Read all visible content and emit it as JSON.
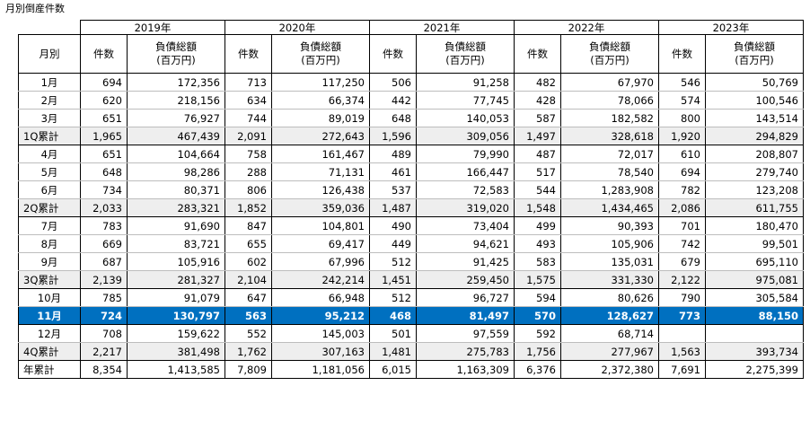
{
  "page_title": "月別倒産件数",
  "header": {
    "month_label": "月別",
    "count_label": "件数",
    "debt_label_line1": "負債総額",
    "debt_label_line2": "(百万円)",
    "years": [
      "2019年",
      "2020年",
      "2021年",
      "2022年",
      "2023年"
    ]
  },
  "rows": [
    {
      "label": "1月",
      "kind": "month",
      "cells": [
        "694",
        "172,356",
        "713",
        "117,250",
        "506",
        "91,258",
        "482",
        "67,970",
        "546",
        "50,769"
      ]
    },
    {
      "label": "2月",
      "kind": "month",
      "cells": [
        "620",
        "218,156",
        "634",
        "66,374",
        "442",
        "77,745",
        "428",
        "78,066",
        "574",
        "100,546"
      ]
    },
    {
      "label": "3月",
      "kind": "month",
      "cells": [
        "651",
        "76,927",
        "744",
        "89,019",
        "648",
        "140,053",
        "587",
        "182,582",
        "800",
        "143,514"
      ]
    },
    {
      "label": "1Q累計",
      "kind": "subtotal",
      "cells": [
        "1,965",
        "467,439",
        "2,091",
        "272,643",
        "1,596",
        "309,056",
        "1,497",
        "328,618",
        "1,920",
        "294,829"
      ]
    },
    {
      "label": "4月",
      "kind": "month",
      "cells": [
        "651",
        "104,664",
        "758",
        "161,467",
        "489",
        "79,990",
        "487",
        "72,017",
        "610",
        "208,807"
      ]
    },
    {
      "label": "5月",
      "kind": "month",
      "cells": [
        "648",
        "98,286",
        "288",
        "71,131",
        "461",
        "166,447",
        "517",
        "78,540",
        "694",
        "279,740"
      ]
    },
    {
      "label": "6月",
      "kind": "month",
      "cells": [
        "734",
        "80,371",
        "806",
        "126,438",
        "537",
        "72,583",
        "544",
        "1,283,908",
        "782",
        "123,208"
      ]
    },
    {
      "label": "2Q累計",
      "kind": "subtotal",
      "cells": [
        "2,033",
        "283,321",
        "1,852",
        "359,036",
        "1,487",
        "319,020",
        "1,548",
        "1,434,465",
        "2,086",
        "611,755"
      ]
    },
    {
      "label": "7月",
      "kind": "month",
      "cells": [
        "783",
        "91,690",
        "847",
        "104,801",
        "490",
        "73,404",
        "499",
        "90,393",
        "701",
        "180,470"
      ]
    },
    {
      "label": "8月",
      "kind": "month",
      "cells": [
        "669",
        "83,721",
        "655",
        "69,417",
        "449",
        "94,621",
        "493",
        "105,906",
        "742",
        "99,501"
      ]
    },
    {
      "label": "9月",
      "kind": "month",
      "cells": [
        "687",
        "105,916",
        "602",
        "67,996",
        "512",
        "91,425",
        "583",
        "135,031",
        "679",
        "695,110"
      ]
    },
    {
      "label": "3Q累計",
      "kind": "subtotal",
      "cells": [
        "2,139",
        "281,327",
        "2,104",
        "242,214",
        "1,451",
        "259,450",
        "1,575",
        "331,330",
        "2,122",
        "975,081"
      ]
    },
    {
      "label": "10月",
      "kind": "month",
      "cells": [
        "785",
        "91,079",
        "647",
        "66,948",
        "512",
        "96,727",
        "594",
        "80,626",
        "790",
        "305,584"
      ]
    },
    {
      "label": "11月",
      "kind": "highlight",
      "cells": [
        "724",
        "130,797",
        "563",
        "95,212",
        "468",
        "81,497",
        "570",
        "128,627",
        "773",
        "88,150"
      ]
    },
    {
      "label": "12月",
      "kind": "month",
      "cells": [
        "708",
        "159,622",
        "552",
        "145,003",
        "501",
        "97,559",
        "592",
        "68,714",
        "",
        ""
      ]
    },
    {
      "label": "4Q累計",
      "kind": "subtotal",
      "cells": [
        "2,217",
        "381,498",
        "1,762",
        "307,163",
        "1,481",
        "275,783",
        "1,756",
        "277,967",
        "1,563",
        "393,734"
      ]
    },
    {
      "label": "年累計",
      "kind": "year-total",
      "cells": [
        "8,354",
        "1,413,585",
        "7,809",
        "1,181,056",
        "6,015",
        "1,163,309",
        "6,376",
        "2,372,380",
        "7,691",
        "2,275,399"
      ]
    }
  ],
  "colors": {
    "highlight": "#0070c0",
    "subtotal": "#eeeeee"
  }
}
